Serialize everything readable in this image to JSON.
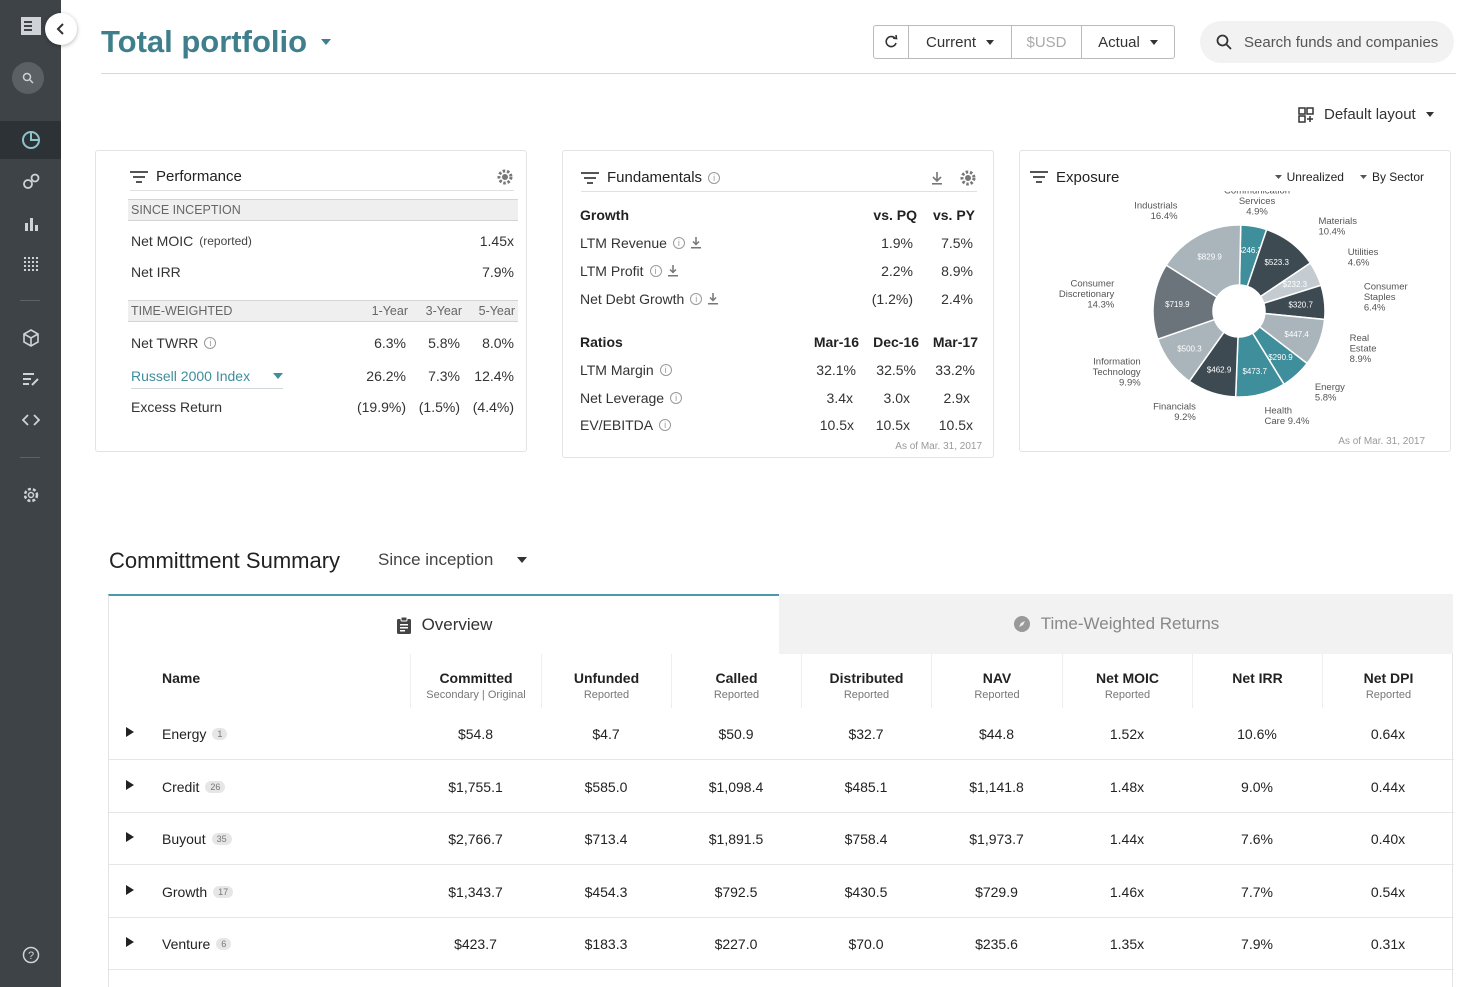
{
  "header": {
    "title": "Total portfolio",
    "refresh_icon": "refresh-icon",
    "period": "Current",
    "currency": "$USD",
    "mode": "Actual",
    "search_placeholder": "Search funds and companies",
    "layout_label": "Default layout"
  },
  "performance": {
    "title": "Performance",
    "since_inception": "SINCE INCEPTION",
    "net_moic_label": "Net MOIC",
    "net_moic_note": "(reported)",
    "net_moic_value": "1.45x",
    "net_irr_label": "Net IRR",
    "net_irr_value": "7.9%",
    "tw_label": "TIME-WEIGHTED",
    "tw_cols": [
      "1-Year",
      "3-Year",
      "5-Year"
    ],
    "twrr_label": "Net TWRR",
    "twrr_values": [
      "6.3%",
      "5.8%",
      "8.0%"
    ],
    "index_label": "Russell 2000 Index",
    "index_values": [
      "26.2%",
      "7.3%",
      "12.4%"
    ],
    "excess_label": "Excess Return",
    "excess_values": [
      "(19.9%)",
      "(1.5%)",
      "(4.4%)"
    ]
  },
  "fundamentals": {
    "title": "Fundamentals",
    "growth_label": "Growth",
    "growth_cols": [
      "vs. PQ",
      "vs. PY"
    ],
    "growth_rows": [
      {
        "label": "LTM Revenue",
        "vals": [
          "1.9%",
          "7.5%"
        ]
      },
      {
        "label": "LTM Profit",
        "vals": [
          "2.2%",
          "8.9%"
        ]
      },
      {
        "label": "Net Debt Growth",
        "vals": [
          "(1.2%)",
          "2.4%"
        ]
      }
    ],
    "ratios_label": "Ratios",
    "ratio_cols": [
      "Mar-16",
      "Dec-16",
      "Mar-17"
    ],
    "ratio_rows": [
      {
        "label": "LTM Margin",
        "vals": [
          "32.1%",
          "32.5%",
          "33.2%"
        ]
      },
      {
        "label": "Net Leverage",
        "vals": [
          "3.4x",
          "3.0x",
          "2.9x"
        ]
      },
      {
        "label": "EV/EBITDA",
        "vals": [
          "10.5x",
          "10.5x",
          "10.5x"
        ]
      }
    ],
    "as_of": "As of Mar. 31, 2017"
  },
  "exposure": {
    "title": "Exposure",
    "filter1": "Unrealized",
    "filter2": "By Sector",
    "as_of": "As of Mar. 31, 2017",
    "colors": {
      "teal": "#3f8e9b",
      "dark": "#3d4a52",
      "mid": "#6b747a",
      "light": "#aab4bb",
      "pale": "#c4ccd1"
    }
  },
  "chart_data": {
    "type": "pie",
    "title": "",
    "series": [
      {
        "name": "Communication Services",
        "value": 4.9,
        "label": "$246.3"
      },
      {
        "name": "Materials",
        "value": 10.4,
        "label": "$523.3"
      },
      {
        "name": "Utilities",
        "value": 4.6,
        "label": "$232.3"
      },
      {
        "name": "Consumer Staples",
        "value": 6.4,
        "label": "$320.7"
      },
      {
        "name": "Real Estate",
        "value": 8.9,
        "label": "$447.4"
      },
      {
        "name": "Energy",
        "value": 5.8,
        "label": "$290.9"
      },
      {
        "name": "Health Care",
        "value": 9.4,
        "label": "$473.7"
      },
      {
        "name": "Financials",
        "value": 9.2,
        "label": "$462.9"
      },
      {
        "name": "Information Technology",
        "value": 9.9,
        "label": "$500.3"
      },
      {
        "name": "Consumer Discretionary",
        "value": 14.3,
        "label": "$719.9"
      },
      {
        "name": "Industrials",
        "value": 16.4,
        "label": "$829.9"
      }
    ],
    "outer_labels": [
      {
        "lines": [
          "Communication",
          "Services",
          "4.9%"
        ]
      },
      {
        "lines": [
          "Materials",
          "10.4%"
        ]
      },
      {
        "lines": [
          "Utilities",
          "4.6%"
        ]
      },
      {
        "lines": [
          "Consumer",
          "Staples",
          "6.4%"
        ]
      },
      {
        "lines": [
          "Real",
          "Estate",
          "8.9%"
        ]
      },
      {
        "lines": [
          "Energy",
          "5.8%"
        ]
      },
      {
        "lines": [
          "Health",
          "Care 9.4%"
        ]
      },
      {
        "lines": [
          "Financials",
          "9.2%"
        ]
      },
      {
        "lines": [
          "Information",
          "Technology",
          "9.9%"
        ]
      },
      {
        "lines": [
          "Consumer",
          "Discretionary",
          "14.3%"
        ]
      },
      {
        "lines": [
          "Industrials",
          "16.4%"
        ]
      }
    ]
  },
  "summary": {
    "title": "Committment Summary",
    "range": "Since inception",
    "tab_overview": "Overview",
    "tab_twr": "Time-Weighted Returns",
    "columns": [
      {
        "h": "Name",
        "s": ""
      },
      {
        "h": "Committed",
        "s": "Secondary | Original"
      },
      {
        "h": "Unfunded",
        "s": "Reported"
      },
      {
        "h": "Called",
        "s": "Reported"
      },
      {
        "h": "Distributed",
        "s": "Reported"
      },
      {
        "h": "NAV",
        "s": "Reported"
      },
      {
        "h": "Net MOIC",
        "s": "Reported"
      },
      {
        "h": "Net IRR",
        "s": ""
      },
      {
        "h": "Net DPI",
        "s": "Reported"
      }
    ],
    "rows": [
      {
        "name": "Energy",
        "count": "1",
        "vals": [
          "$54.8",
          "$4.7",
          "$50.9",
          "$32.7",
          "$44.8",
          "1.52x",
          "10.6%",
          "0.64x"
        ]
      },
      {
        "name": "Credit",
        "count": "26",
        "vals": [
          "$1,755.1",
          "$585.0",
          "$1,098.4",
          "$485.1",
          "$1,141.8",
          "1.48x",
          "9.0%",
          "0.44x"
        ]
      },
      {
        "name": "Buyout",
        "count": "35",
        "vals": [
          "$2,766.7",
          "$713.4",
          "$1,891.5",
          "$758.4",
          "$1,973.7",
          "1.44x",
          "7.6%",
          "0.40x"
        ]
      },
      {
        "name": "Growth",
        "count": "17",
        "vals": [
          "$1,343.7",
          "$454.3",
          "$792.5",
          "$430.5",
          "$729.9",
          "1.46x",
          "7.7%",
          "0.54x"
        ]
      },
      {
        "name": "Venture",
        "count": "6",
        "vals": [
          "$423.7",
          "$183.3",
          "$227.0",
          "$70.0",
          "$235.6",
          "1.35x",
          "7.9%",
          "0.31x"
        ]
      }
    ]
  }
}
